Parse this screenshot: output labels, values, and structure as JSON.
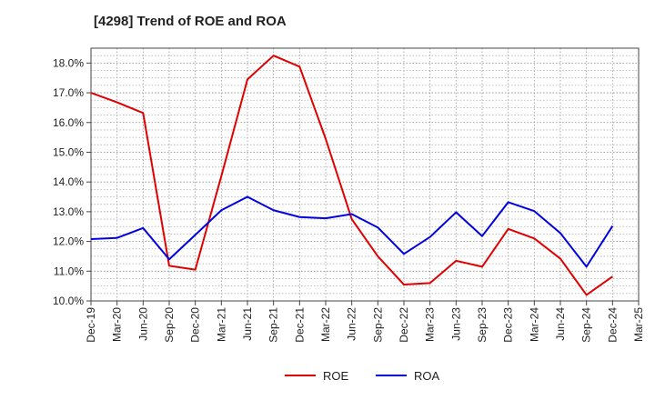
{
  "title": "[4298]  Trend of ROE and ROA",
  "chart_data": {
    "type": "line",
    "title": "[4298]  Trend of ROE and ROA",
    "xlabel": "",
    "ylabel": "",
    "x": [
      "Dec-19",
      "Mar-20",
      "Jun-20",
      "Sep-20",
      "Dec-20",
      "Mar-21",
      "Jun-21",
      "Sep-21",
      "Dec-21",
      "Mar-22",
      "Jun-22",
      "Sep-22",
      "Dec-22",
      "Mar-23",
      "Jun-23",
      "Sep-23",
      "Dec-23",
      "Mar-24",
      "Jun-24",
      "Sep-24",
      "Dec-24",
      "Mar-25"
    ],
    "ylim": [
      10.0,
      18.5
    ],
    "yticks": [
      10.0,
      11.0,
      12.0,
      13.0,
      14.0,
      15.0,
      16.0,
      17.0,
      18.0
    ],
    "ytick_labels": [
      "10.0%",
      "11.0%",
      "12.0%",
      "13.0%",
      "14.0%",
      "15.0%",
      "16.0%",
      "17.0%",
      "18.0%"
    ],
    "grid": true,
    "legend_position": "bottom-center",
    "series": [
      {
        "name": "ROE",
        "color": "#e00000",
        "values": [
          17.0,
          16.68,
          16.32,
          11.18,
          11.05,
          14.2,
          17.45,
          18.25,
          17.88,
          15.45,
          12.75,
          11.5,
          10.55,
          10.6,
          11.35,
          11.15,
          12.42,
          12.1,
          11.42,
          10.2,
          10.82,
          null
        ]
      },
      {
        "name": "ROA",
        "color": "#0000e0",
        "values": [
          12.08,
          12.12,
          12.45,
          11.4,
          12.22,
          13.05,
          13.5,
          13.05,
          12.82,
          12.78,
          12.92,
          12.47,
          11.58,
          12.15,
          12.98,
          12.18,
          13.32,
          13.02,
          12.28,
          11.15,
          12.52,
          null
        ]
      }
    ]
  }
}
